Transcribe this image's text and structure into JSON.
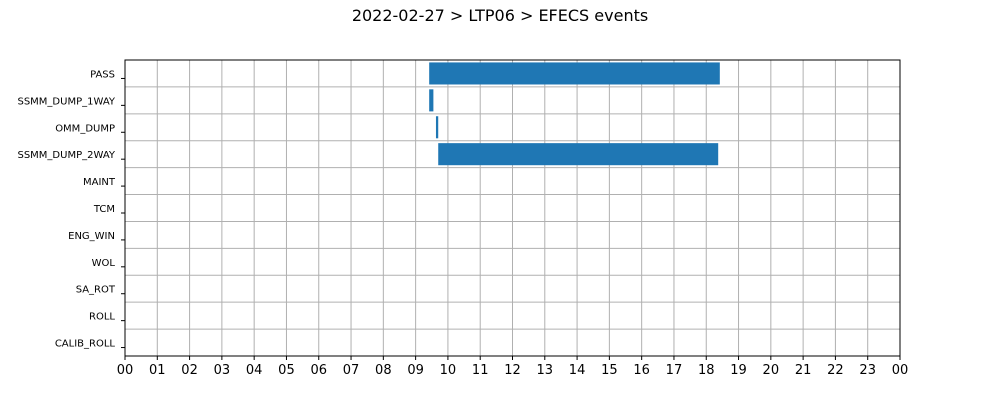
{
  "chart_data": {
    "type": "bar",
    "orientation": "horizontal",
    "title": "2022-02-27 > LTP06 > EFECS events",
    "xlabel": "",
    "ylabel": "",
    "xlim": [
      0,
      24
    ],
    "x_tick_labels": [
      "00",
      "01",
      "02",
      "03",
      "04",
      "05",
      "06",
      "07",
      "08",
      "09",
      "10",
      "11",
      "12",
      "13",
      "14",
      "15",
      "16",
      "17",
      "18",
      "19",
      "20",
      "21",
      "22",
      "23",
      "00"
    ],
    "categories": [
      "PASS",
      "SSMM_DUMP_1WAY",
      "OMM_DUMP",
      "SSMM_DUMP_2WAY",
      "MAINT",
      "TCM",
      "ENG_WIN",
      "WOL",
      "SA_ROT",
      "ROLL",
      "CALIB_ROLL"
    ],
    "events": [
      {
        "category": "PASS",
        "start": 9.42,
        "end": 18.42
      },
      {
        "category": "SSMM_DUMP_1WAY",
        "start": 9.42,
        "end": 9.55
      },
      {
        "category": "OMM_DUMP",
        "start": 9.63,
        "end": 9.7
      },
      {
        "category": "SSMM_DUMP_2WAY",
        "start": 9.7,
        "end": 18.37
      }
    ],
    "bar_color": "#1f77b4",
    "grid": true
  }
}
